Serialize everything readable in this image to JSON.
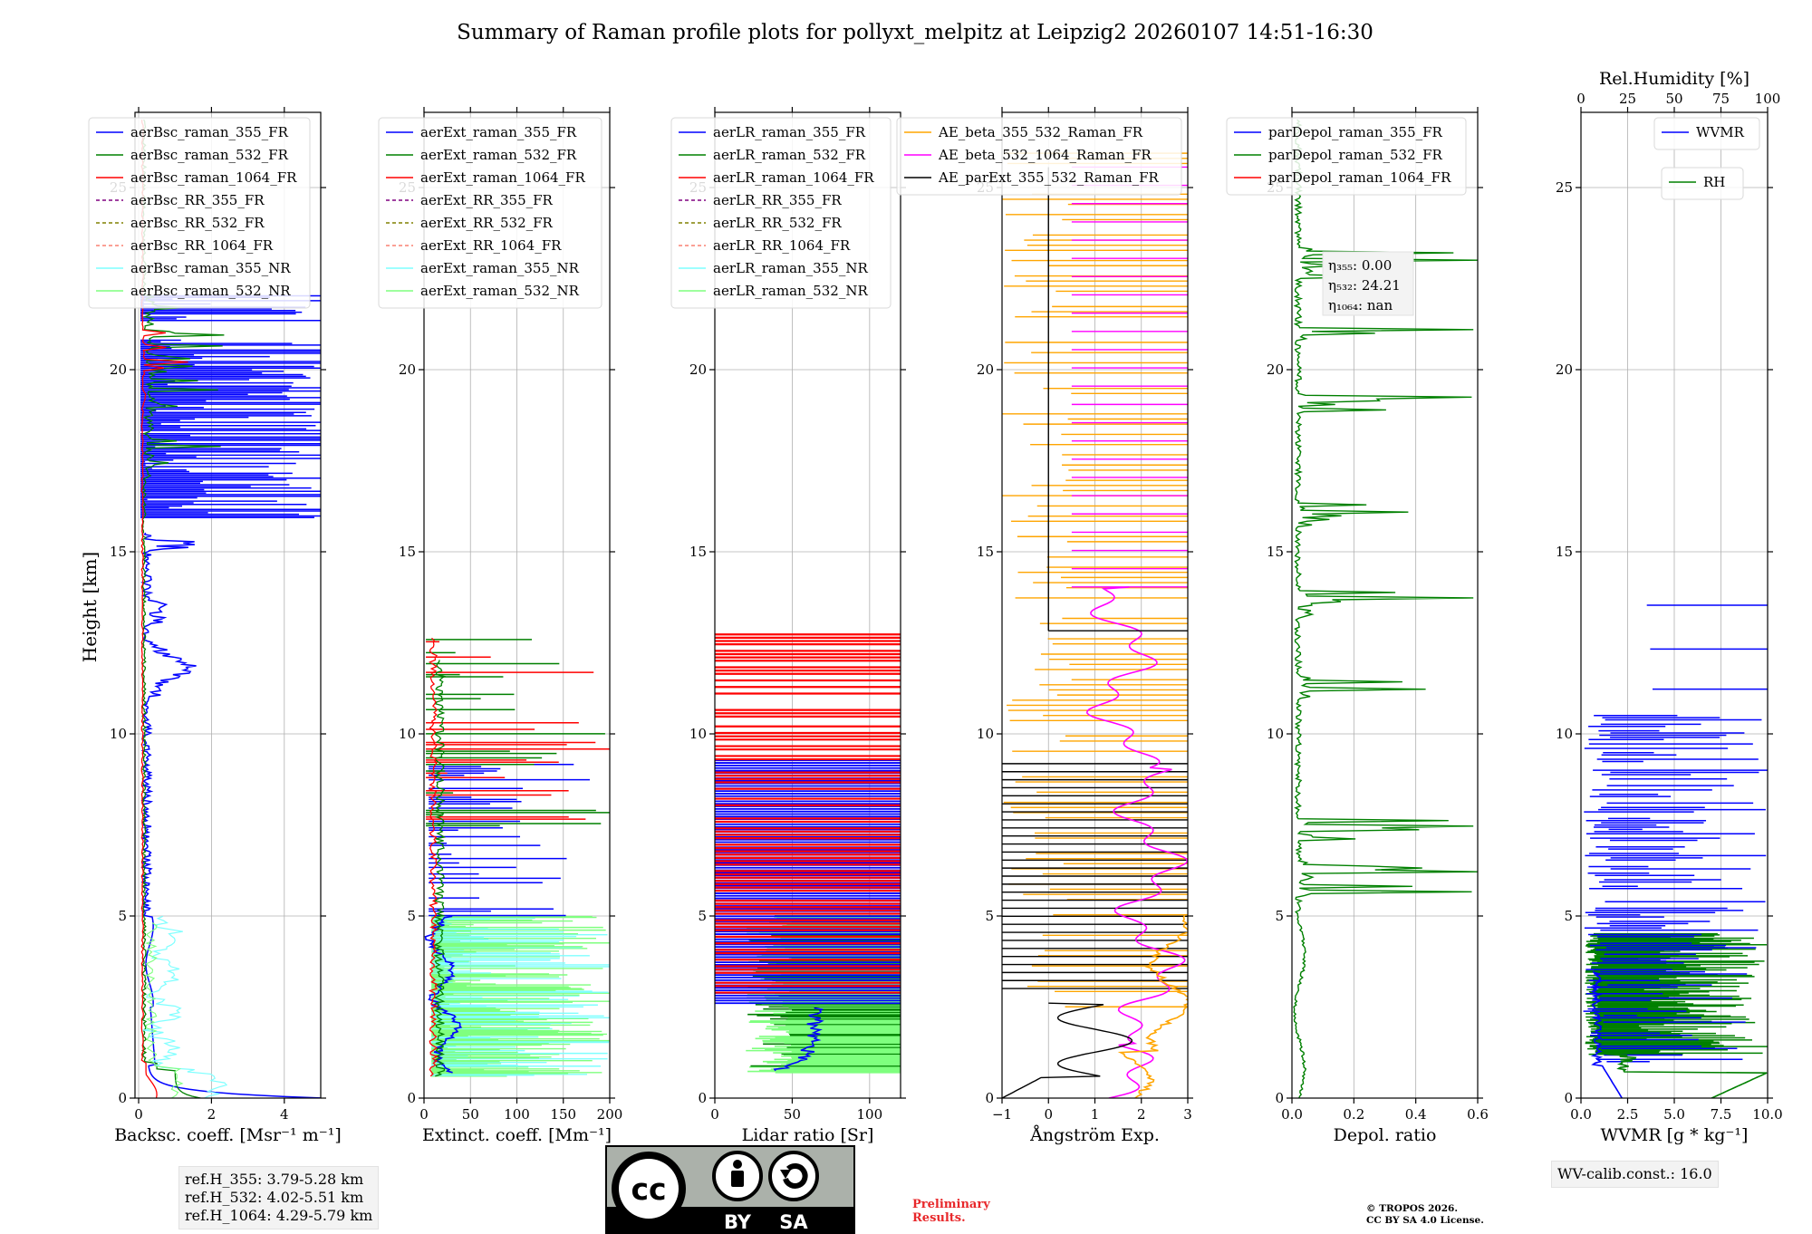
{
  "title": "Summary of Raman profile plots for pollyxt_melpitz at Leipzig2 20260107 14:51-16:30",
  "y_label": "Height [km]",
  "y_ticks": [
    "0",
    "5",
    "10",
    "15",
    "20",
    "25"
  ],
  "colors": {
    "c355": "#0000ff",
    "c532": "#008000",
    "c1064": "#ff0000",
    "rr355": "#800080",
    "rr532": "#808000",
    "rr1064": "#fa8072",
    "nr355": "#7fffff",
    "nr532": "#7fff7f",
    "ae1": "#ffa500",
    "ae2": "#ff00ff",
    "ae3": "#000000",
    "grid": "#b0b0b0"
  },
  "chart_data": [
    {
      "type": "line",
      "name": "backscatter",
      "xlabel": "Backsc. coeff. [Msr⁻¹ m⁻¹]",
      "xlim": [
        -0.1,
        5
      ],
      "ylim": [
        0,
        27
      ],
      "xticks": [
        0,
        2,
        4
      ],
      "xtick_labels": [
        "0",
        "2",
        "4"
      ],
      "legend": [
        "aerBsc_raman_355_FR",
        "aerBsc_raman_532_FR",
        "aerBsc_raman_1064_FR",
        "aerBsc_RR_355_FR",
        "aerBsc_RR_532_FR",
        "aerBsc_RR_1064_FR",
        "aerBsc_raman_355_NR",
        "aerBsc_raman_532_NR"
      ]
    },
    {
      "type": "line",
      "name": "extinction",
      "xlabel": "Extinct. coeff. [Mm⁻¹]",
      "xlim": [
        0,
        200
      ],
      "ylim": [
        0,
        27
      ],
      "xticks": [
        0,
        50,
        100,
        150,
        200
      ],
      "xtick_labels": [
        "0",
        "50",
        "100",
        "150",
        "200"
      ],
      "legend": [
        "aerExt_raman_355_FR",
        "aerExt_raman_532_FR",
        "aerExt_raman_1064_FR",
        "aerExt_RR_355_FR",
        "aerExt_RR_532_FR",
        "aerExt_RR_1064_FR",
        "aerExt_raman_355_NR",
        "aerExt_raman_532_NR"
      ]
    },
    {
      "type": "line",
      "name": "lidar-ratio",
      "xlabel": "Lidar ratio [Sr]",
      "xlim": [
        0,
        120
      ],
      "ylim": [
        0,
        27
      ],
      "xticks": [
        0,
        50,
        100
      ],
      "xtick_labels": [
        "0",
        "50",
        "100"
      ],
      "legend": [
        "aerLR_raman_355_FR",
        "aerLR_raman_532_FR",
        "aerLR_raman_1064_FR",
        "aerLR_RR_355_FR",
        "aerLR_RR_532_FR",
        "aerLR_RR_1064_FR",
        "aerLR_raman_355_NR",
        "aerLR_raman_532_NR"
      ]
    },
    {
      "type": "line",
      "name": "angstrom",
      "xlabel": "Ångström Exp.",
      "xlim": [
        -1,
        3
      ],
      "ylim": [
        0,
        27
      ],
      "xticks": [
        -1,
        0,
        1,
        2,
        3
      ],
      "xtick_labels": [
        "−1",
        "0",
        "1",
        "2",
        "3"
      ],
      "legend": [
        "AE_beta_355_532_Raman_FR",
        "AE_beta_532_1064_Raman_FR",
        "AE_parExt_355_532_Raman_FR"
      ]
    },
    {
      "type": "line",
      "name": "depolarization",
      "xlabel": "Depol. ratio",
      "xlim": [
        0,
        0.6
      ],
      "ylim": [
        0,
        27
      ],
      "xticks": [
        0,
        0.2,
        0.4,
        0.6
      ],
      "xtick_labels": [
        "0.0",
        "0.2",
        "0.4",
        "0.6"
      ],
      "legend": [
        "parDepol_raman_355_FR",
        "parDepol_raman_532_FR",
        "parDepol_raman_1064_FR"
      ],
      "eta": [
        "η₃₅₅: 0.00",
        "η₅₃₂: 24.21",
        "η₁₀₆₄: nan"
      ]
    },
    {
      "type": "line",
      "name": "water-vapor",
      "xlabel": "WVMR [g * kg⁻¹]",
      "xlim": [
        0,
        10
      ],
      "ylim": [
        0,
        27
      ],
      "xticks": [
        0,
        2.5,
        5,
        7.5,
        10
      ],
      "xtick_labels": [
        "0.0",
        "2.5",
        "5.0",
        "7.5",
        "10.0"
      ],
      "top_xlabel": "Rel.Humidity [%]",
      "top_xlim": [
        0,
        100
      ],
      "top_xticks": [
        0,
        25,
        50,
        75,
        100
      ],
      "top_xtick_labels": [
        "0",
        "25",
        "50",
        "75",
        "100"
      ],
      "legend": [
        "WVMR",
        "RH"
      ]
    }
  ],
  "ref_heights": [
    "ref.H_355: 3.79-5.28 km",
    "ref.H_532: 4.02-5.51 km",
    "ref.H_1064: 4.29-5.79 km"
  ],
  "wv_calib": "WV-calib.const.: 16.0",
  "license_badge": {
    "left": "BY",
    "right": "SA"
  },
  "preliminary": [
    "Preliminary",
    "Results."
  ],
  "copyright": [
    "© TROPOS 2026.",
    "CC BY SA 4.0 License."
  ]
}
